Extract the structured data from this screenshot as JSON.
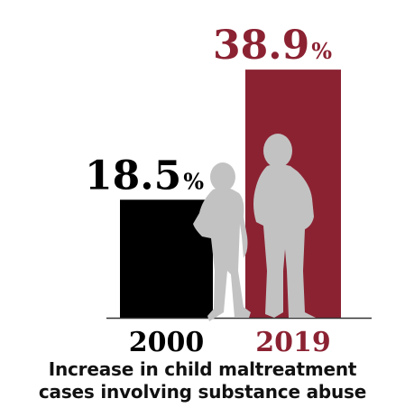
{
  "chart_data": {
    "type": "bar",
    "categories": [
      "2000",
      "2019"
    ],
    "values": [
      18.5,
      38.9
    ],
    "value_labels": [
      "18.5",
      "38.9"
    ],
    "unit_symbol": "%",
    "colors": [
      "#000000",
      "#8b2232"
    ],
    "label_colors": [
      "#000000",
      "#8b2232"
    ],
    "ylim": [
      0,
      45
    ],
    "grid": false,
    "legend": "none"
  },
  "caption": {
    "line1": "Increase in child maltreatment",
    "line2": "cases involving substance abuse"
  },
  "illustration": {
    "icon": "children-silhouette-icon",
    "color": "#c2c2c2"
  }
}
